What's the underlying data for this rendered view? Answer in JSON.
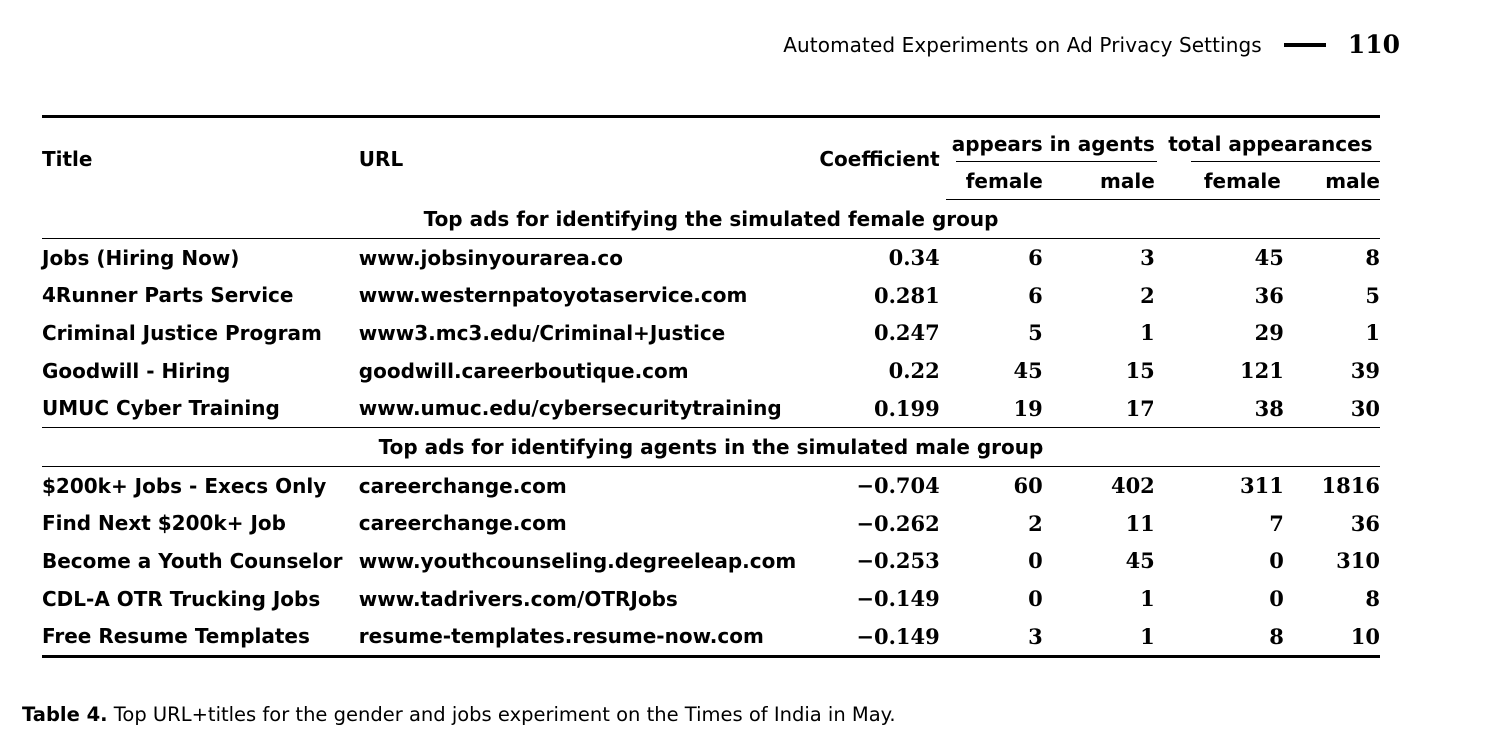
{
  "running_header": {
    "title": "Automated Experiments on Ad Privacy Settings",
    "page_number": "110"
  },
  "table": {
    "headers": {
      "title": "Title",
      "url": "URL",
      "coefficient": "Coefficient",
      "appears_in_agents": "appears in agents",
      "total_appearances": "total appearances",
      "female": "female",
      "male": "male"
    },
    "sections": [
      {
        "heading": "Top ads for identifying the simulated female group",
        "rows": [
          {
            "title": "Jobs (Hiring Now)",
            "url": "www.jobsinyourarea.co",
            "coefficient": "0.34",
            "agents_female": "6",
            "agents_male": "3",
            "total_female": "45",
            "total_male": "8"
          },
          {
            "title": "4Runner Parts Service",
            "url": "www.westernpatoyotaservice.com",
            "coefficient": "0.281",
            "agents_female": "6",
            "agents_male": "2",
            "total_female": "36",
            "total_male": "5"
          },
          {
            "title": "Criminal Justice Program",
            "url": "www3.mc3.edu/Criminal+Justice",
            "coefficient": "0.247",
            "agents_female": "5",
            "agents_male": "1",
            "total_female": "29",
            "total_male": "1"
          },
          {
            "title": "Goodwill - Hiring",
            "url": "goodwill.careerboutique.com",
            "coefficient": "0.22",
            "agents_female": "45",
            "agents_male": "15",
            "total_female": "121",
            "total_male": "39"
          },
          {
            "title": "UMUC Cyber Training",
            "url": "www.umuc.edu/cybersecuritytraining",
            "coefficient": "0.199",
            "agents_female": "19",
            "agents_male": "17",
            "total_female": "38",
            "total_male": "30"
          }
        ]
      },
      {
        "heading": "Top ads for identifying agents in the simulated male group",
        "rows": [
          {
            "title": "$200k+ Jobs - Execs Only",
            "url": "careerchange.com",
            "coefficient": "−0.704",
            "agents_female": "60",
            "agents_male": "402",
            "total_female": "311",
            "total_male": "1816"
          },
          {
            "title": "Find Next $200k+ Job",
            "url": "careerchange.com",
            "coefficient": "−0.262",
            "agents_female": "2",
            "agents_male": "11",
            "total_female": "7",
            "total_male": "36"
          },
          {
            "title": "Become a Youth Counselor",
            "url": "www.youthcounseling.degreeleap.com",
            "coefficient": "−0.253",
            "agents_female": "0",
            "agents_male": "45",
            "total_female": "0",
            "total_male": "310"
          },
          {
            "title": "CDL-A OTR Trucking Jobs",
            "url": "www.tadrivers.com/OTRJobs",
            "coefficient": "−0.149",
            "agents_female": "0",
            "agents_male": "1",
            "total_female": "0",
            "total_male": "8"
          },
          {
            "title": "Free Resume Templates",
            "url": "resume-templates.resume-now.com",
            "coefficient": "−0.149",
            "agents_female": "3",
            "agents_male": "1",
            "total_female": "8",
            "total_male": "10"
          }
        ]
      }
    ]
  },
  "caption": {
    "label": "Table 4.",
    "text": "Top URL+titles for the gender and jobs experiment on the Times of India in May."
  }
}
